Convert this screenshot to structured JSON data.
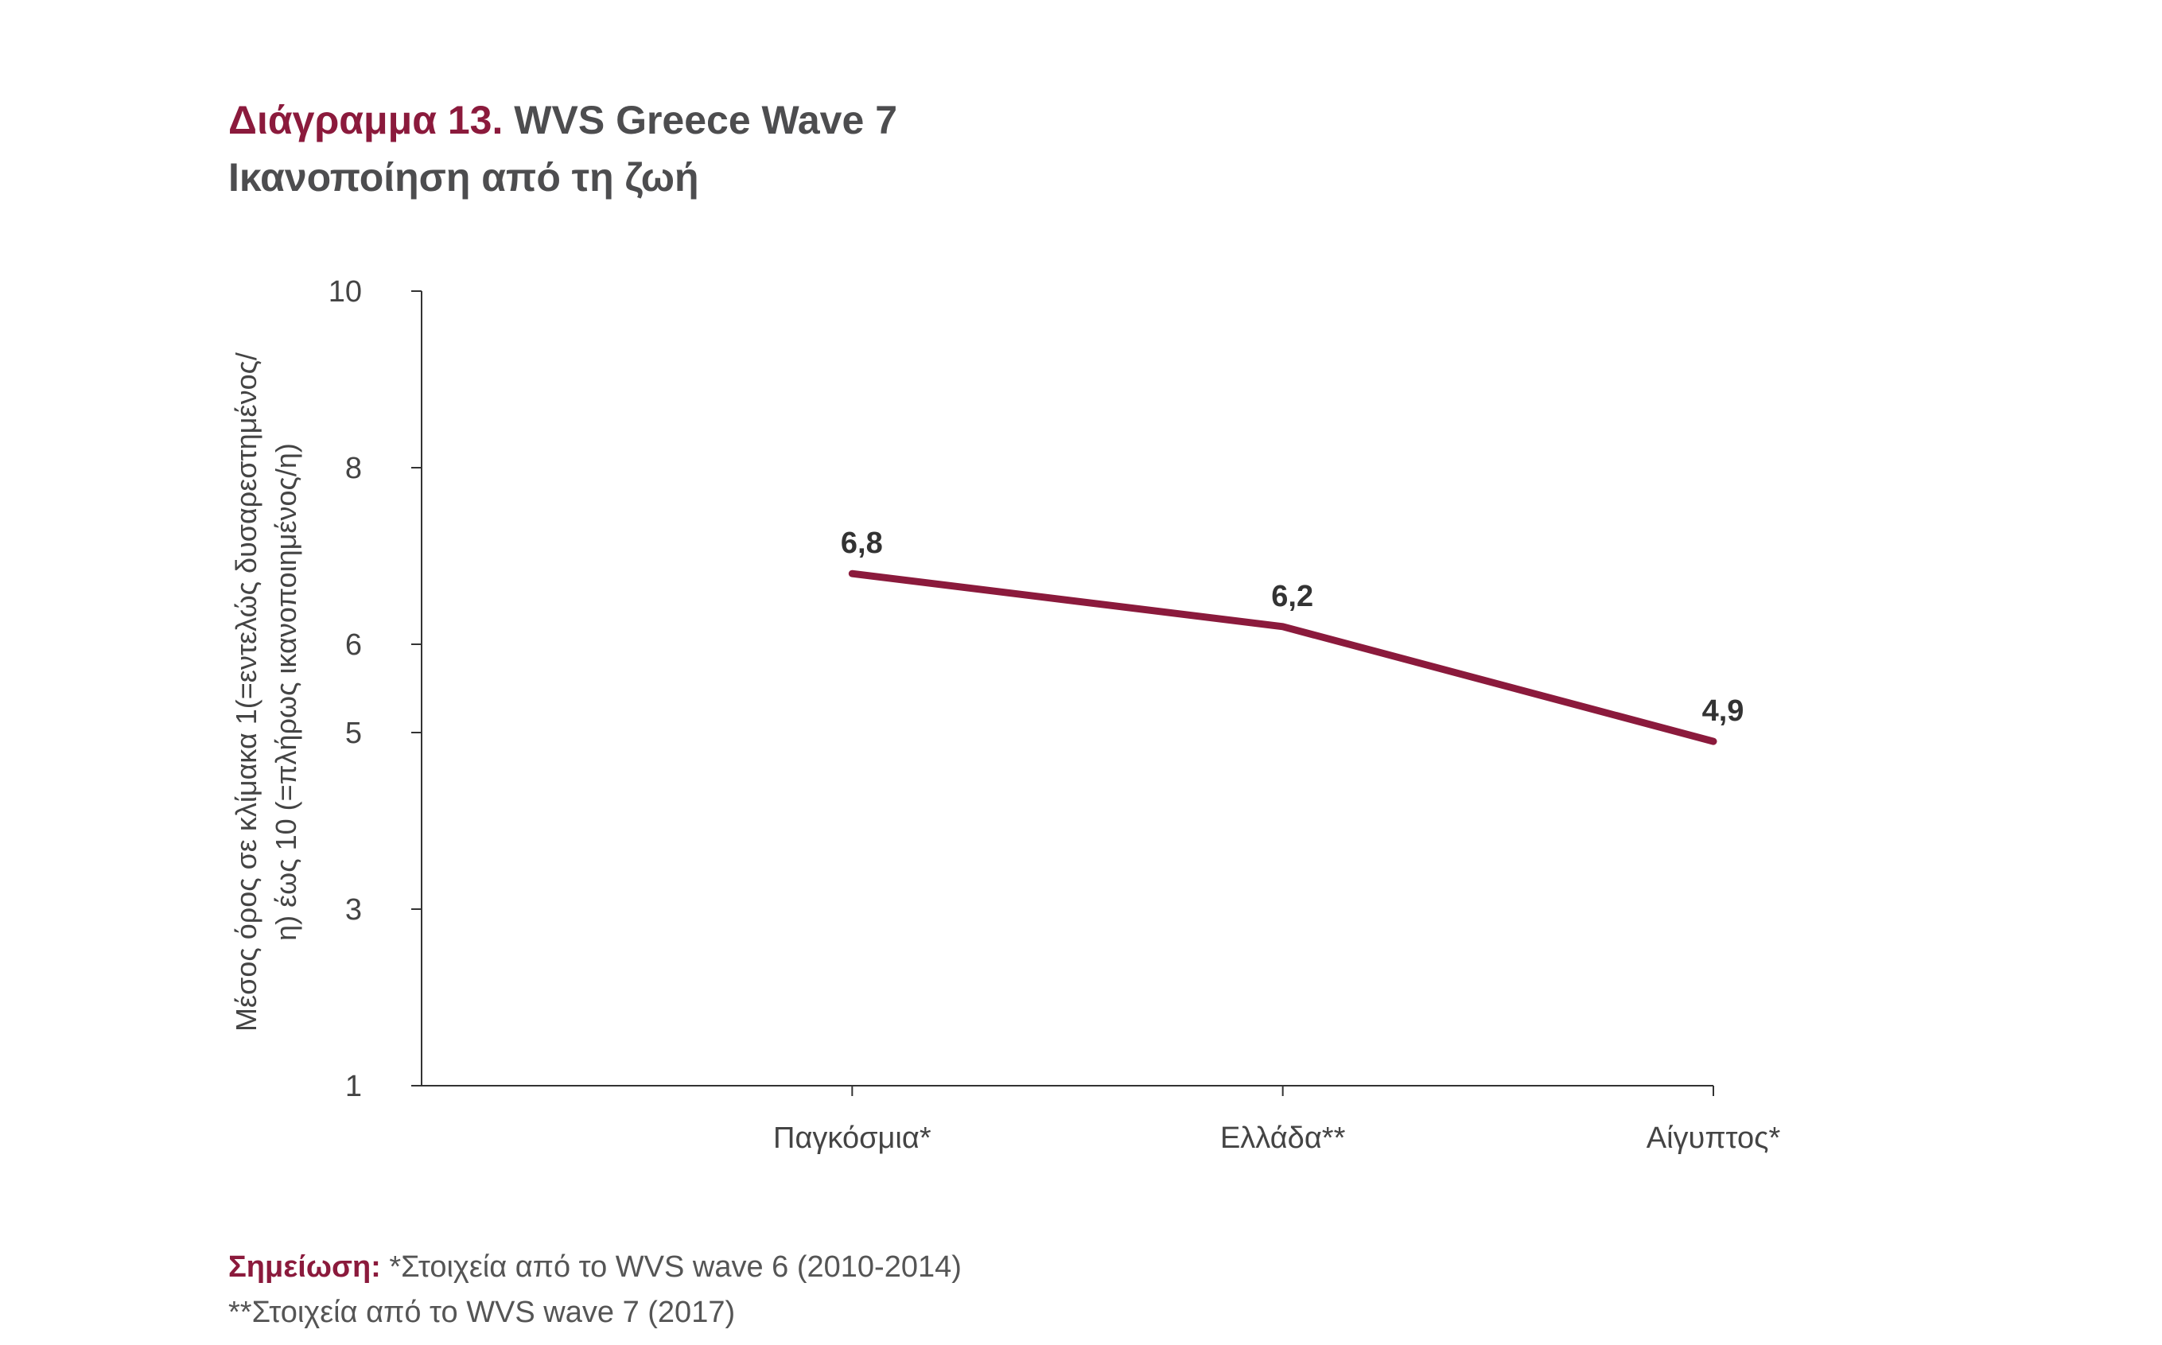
{
  "header": {
    "title_prefix": "Διάγραμμα 13.",
    "title_main": "WVS Greece Wave 7",
    "subtitle": "Ικανοποίηση από τη ζωή"
  },
  "chart_data": {
    "type": "line",
    "categories": [
      "Παγκόσμια*",
      "Ελλάδα**",
      "Αίγυπτος*"
    ],
    "series": [
      {
        "values": [
          6.8,
          6.2,
          4.9
        ],
        "labels": [
          "6,8",
          "6,2",
          "4,9"
        ],
        "color": "#8b1a3c"
      }
    ],
    "ylabel_line1": "Μέσος όρος σε κλίμακα 1(=εντελώς δυσαρεστημένος/",
    "ylabel_line2": "η) έως 10 (=πλήρως ικανοποιημένος/η)",
    "ytick_labels": [
      "1",
      "3",
      "5",
      "6",
      "8",
      "10"
    ],
    "ylim": [
      1,
      10
    ],
    "grid": false
  },
  "notes": {
    "label": "Σημείωση:",
    "line1": "*Στοιχεία από το WVS wave 6 (2010-2014)",
    "line2": "**Στοιχεία από το WVS wave 7 (2017)"
  }
}
